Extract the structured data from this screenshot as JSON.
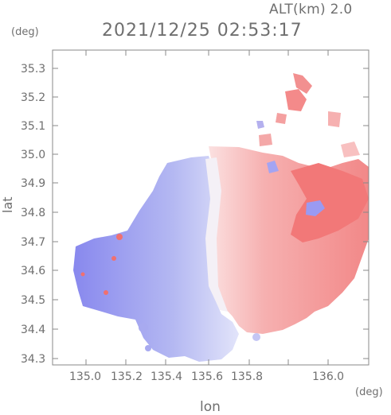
{
  "header": {
    "altitude": "ALT(km) 2.0",
    "timestamp": "2021/12/25 02:53:17"
  },
  "axes": {
    "y_unit": "(deg)",
    "x_unit": "(deg)",
    "y_label": "lat",
    "x_label": "lon",
    "x_ticks": [
      "135.0",
      "135.2",
      "135.4",
      "135.6",
      "135.8",
      "136.0"
    ],
    "y_ticks": [
      "35.3",
      "35.2",
      "35.1",
      "35.0",
      "34.9",
      "34.8",
      "34.7",
      "34.6",
      "34.5",
      "34.4",
      "34.3"
    ]
  },
  "colors": {
    "approaching": "#8c8cf0",
    "receding": "#f07878",
    "frame": "#888888"
  }
}
